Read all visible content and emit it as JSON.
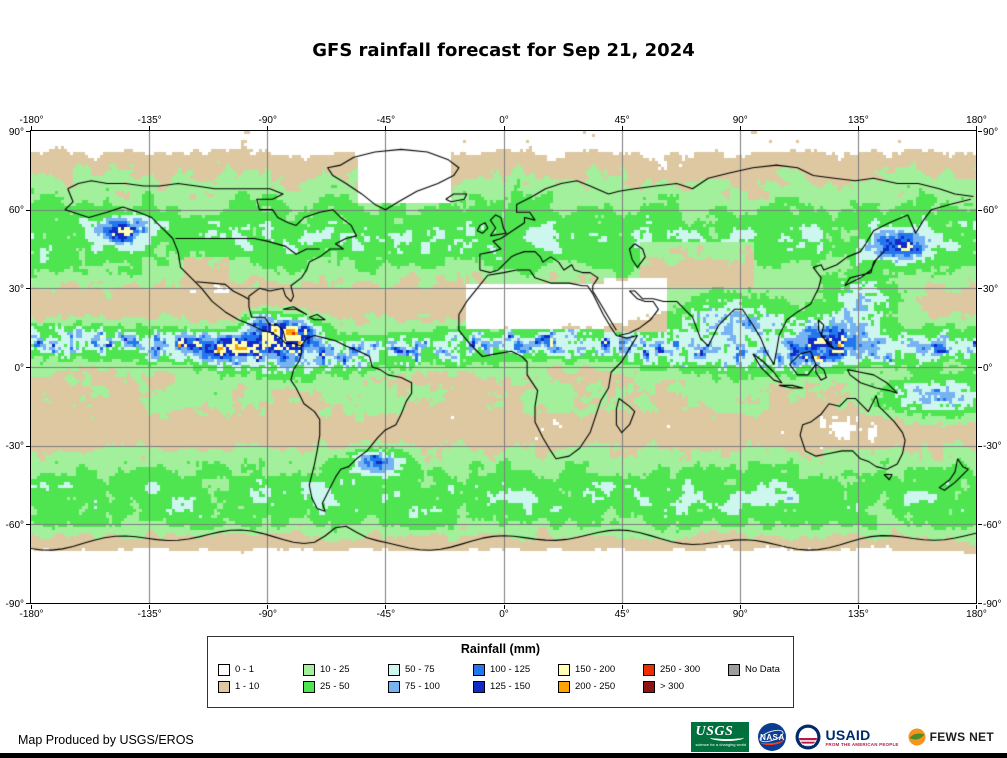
{
  "title": "GFS rainfall forecast for Sep 21, 2024",
  "map": {
    "lon_ticks": [
      "-180°",
      "-135°",
      "-90°",
      "-45°",
      "0°",
      "45°",
      "90°",
      "135°",
      "180°"
    ],
    "lat_ticks": [
      "90°",
      "60°",
      "30°",
      "0°",
      "-30°",
      "-60°",
      "-90°"
    ]
  },
  "legend": {
    "title": "Rainfall (mm)",
    "entries": [
      {
        "label": "0 - 1",
        "color": "#ffffff"
      },
      {
        "label": "1 - 10",
        "color": "#ddc8a1"
      },
      {
        "label": "10 - 25",
        "color": "#a2f09b"
      },
      {
        "label": "25 - 50",
        "color": "#4ee551"
      },
      {
        "label": "50 - 75",
        "color": "#cdf6ef"
      },
      {
        "label": "75 - 100",
        "color": "#77b3f2"
      },
      {
        "label": "100 - 125",
        "color": "#2377ec"
      },
      {
        "label": "125 - 150",
        "color": "#0f2cc8"
      },
      {
        "label": "150 - 200",
        "color": "#ffffb6"
      },
      {
        "label": "200 - 250",
        "color": "#ffa300"
      },
      {
        "label": "250 - 300",
        "color": "#ee2d00"
      },
      {
        "label": "> 300",
        "color": "#8e1414"
      },
      {
        "label": "No Data",
        "color": "#9c9c9c"
      }
    ]
  },
  "footer": {
    "credit": "Map Produced by USGS/EROS",
    "logos": {
      "usgs": {
        "text": "USGS",
        "tagline": "science for a changing world"
      },
      "nasa": {
        "text": "NASA"
      },
      "usaid": {
        "text": "USAID",
        "tagline": "FROM THE AMERICAN PEOPLE"
      },
      "fewsnet": {
        "text": "FEWS NET"
      }
    }
  }
}
